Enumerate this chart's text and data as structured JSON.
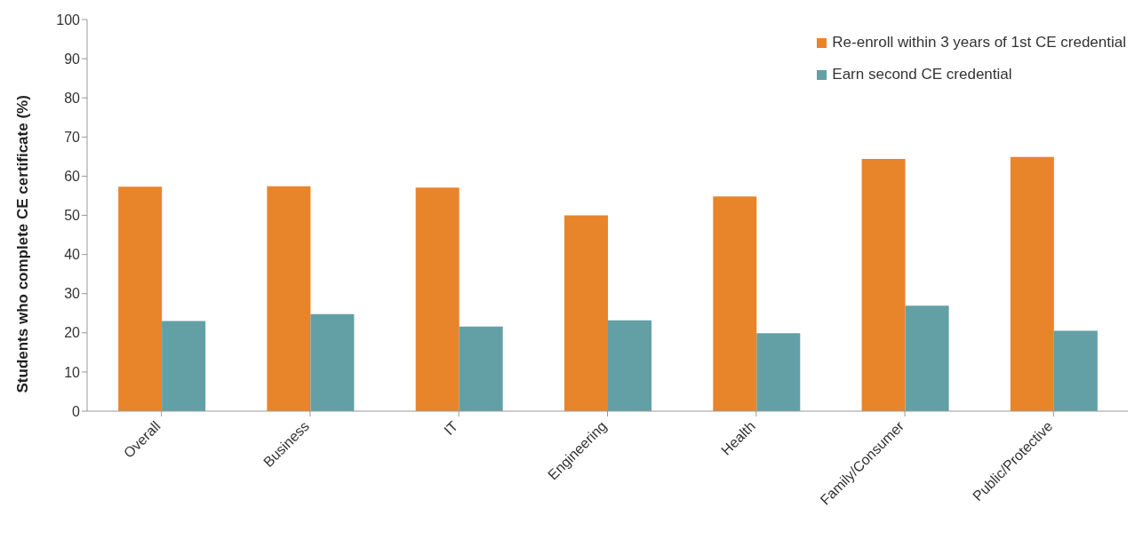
{
  "chart_data": {
    "type": "bar",
    "ylabel": "Students who complete CE certificate (%)",
    "categories": [
      "Overall",
      "Business",
      "IT",
      "Engineering",
      "Health",
      "Family/Consumer",
      "Public/Protective"
    ],
    "series": [
      {
        "name": "Re-enroll within 3 years of 1st CE credential",
        "color": "#e8852a",
        "values": [
          57.3,
          57.4,
          57.1,
          50,
          54.8,
          64.4,
          64.9
        ]
      },
      {
        "name": "Earn second CE credential",
        "color": "#62a0a6",
        "values": [
          23,
          24.8,
          21.6,
          23.2,
          19.9,
          26.9,
          20.5
        ]
      }
    ],
    "ylim": [
      0,
      100
    ],
    "yticks": [
      0,
      10,
      20,
      30,
      40,
      50,
      60,
      70,
      80,
      90,
      100
    ],
    "grid": false,
    "legend": "top right"
  }
}
